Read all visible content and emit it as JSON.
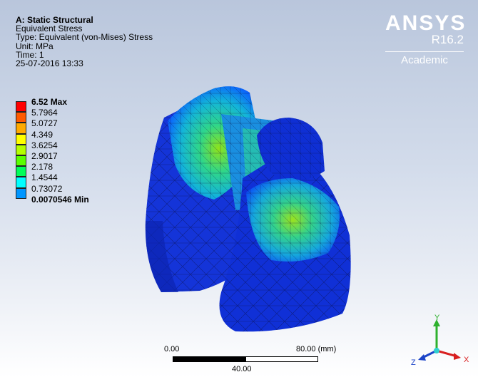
{
  "info": {
    "title": "A: Static Structural",
    "result": "Equivalent Stress",
    "type": "Type: Equivalent (von-Mises) Stress",
    "unit": "Unit: MPa",
    "time": "Time: 1",
    "datetime": "25-07-2016 13:33"
  },
  "legend": {
    "entries": [
      {
        "label": "6.52 Max",
        "color": "#ff0000",
        "bold": true
      },
      {
        "label": "5.7964",
        "color": "#ff5a00"
      },
      {
        "label": "5.0727",
        "color": "#ffaa00"
      },
      {
        "label": "4.349",
        "color": "#ffff00"
      },
      {
        "label": "3.6254",
        "color": "#b4ff00"
      },
      {
        "label": "2.9017",
        "color": "#5aff00"
      },
      {
        "label": "2.178",
        "color": "#00ff5a"
      },
      {
        "label": "1.4544",
        "color": "#00ffff"
      },
      {
        "label": "0.73072",
        "color": "#0096ff"
      },
      {
        "label": "0.0070546 Min",
        "color": "#0000ff",
        "bold": true
      }
    ]
  },
  "logo": {
    "brand": "ANSYS",
    "version": "R16.2",
    "edition": "Academic"
  },
  "scale": {
    "start": "0.00",
    "end": "80.00 (mm)",
    "mid": "40.00"
  },
  "triad": {
    "x": "X",
    "y": "Y",
    "z": "Z"
  }
}
